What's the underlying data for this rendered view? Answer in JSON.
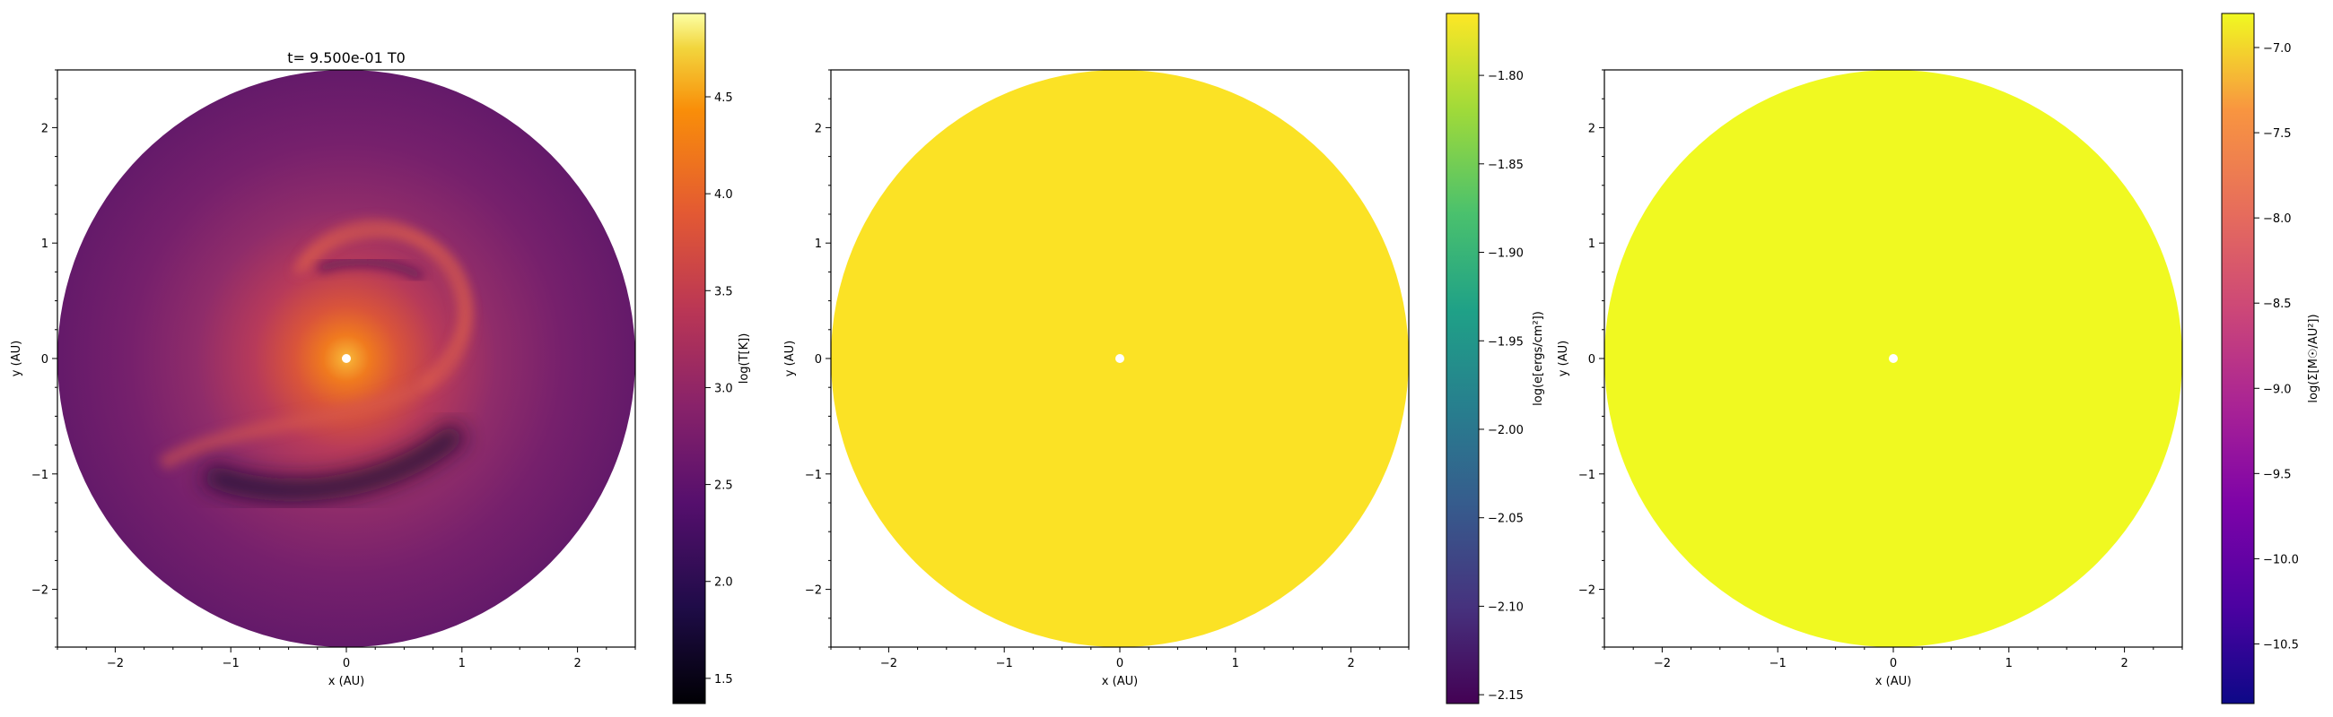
{
  "chart_data": [
    {
      "type": "heatmap",
      "title": "t= 9.500e-01 T0",
      "xlabel": "x (AU)",
      "ylabel": "y (AU)",
      "xlim": [
        -2.5,
        2.5
      ],
      "ylim": [
        -2.5,
        2.5
      ],
      "xticks": [
        -2,
        -1,
        0,
        1,
        2
      ],
      "yticks": [
        -2,
        -1,
        0,
        1,
        2
      ],
      "colorbar": {
        "label": "log(T[K])",
        "range": [
          1.37,
          4.93
        ],
        "ticks": [
          1.5,
          2.0,
          2.5,
          3.0,
          3.5,
          4.0,
          4.5
        ],
        "tick_labels": [
          "1.5",
          "2.0",
          "2.5",
          "3.0",
          "3.5",
          "4.0",
          "4.5"
        ],
        "colormap": "inferno"
      },
      "disk_outer_radius": 2.5,
      "background_value": 2.6,
      "features": "spiral arms, hot center (~3.4), cold arc near (0.2,-1.1) at ~1.9"
    },
    {
      "type": "heatmap",
      "title": "",
      "xlabel": "x (AU)",
      "ylabel": "y (AU)",
      "xlim": [
        -2.5,
        2.5
      ],
      "ylim": [
        -2.5,
        2.5
      ],
      "xticks": [
        -2,
        -1,
        0,
        1,
        2
      ],
      "yticks": [
        -2,
        -1,
        0,
        1,
        2
      ],
      "colorbar": {
        "label": "log(e[ergs/cm²])",
        "range": [
          -2.155,
          -1.765
        ],
        "ticks": [
          -2.15,
          -2.1,
          -2.05,
          -2.0,
          -1.95,
          -1.9,
          -1.85,
          -1.8
        ],
        "tick_labels": [
          "−2.15",
          "−2.10",
          "−2.05",
          "−2.00",
          "−1.95",
          "−1.90",
          "−1.85",
          "−1.80"
        ],
        "colormap": "viridis"
      },
      "disk_outer_radius": 2.5,
      "uniform_value": -1.765,
      "fill_color": "#fbe225"
    },
    {
      "type": "heatmap",
      "title": "",
      "xlabel": "x (AU)",
      "ylabel": "y (AU)",
      "xlim": [
        -2.5,
        2.5
      ],
      "ylim": [
        -2.5,
        2.5
      ],
      "xticks": [
        -2,
        -1,
        0,
        1,
        2
      ],
      "yticks": [
        -2,
        -1,
        0,
        1,
        2
      ],
      "colorbar": {
        "label": "log(Σ[M☉/AU²])",
        "range": [
          -10.85,
          -6.8
        ],
        "ticks": [
          -10.5,
          -10.0,
          -9.5,
          -9.0,
          -8.5,
          -8.0,
          -7.5,
          -7.0
        ],
        "tick_labels": [
          "−10.5",
          "−10.0",
          "−9.5",
          "−9.0",
          "−8.5",
          "−8.0",
          "−7.5",
          "−7.0"
        ],
        "colormap": "plasma"
      },
      "disk_outer_radius": 2.5,
      "uniform_value": -6.85,
      "fill_color": "#f0f921"
    }
  ]
}
